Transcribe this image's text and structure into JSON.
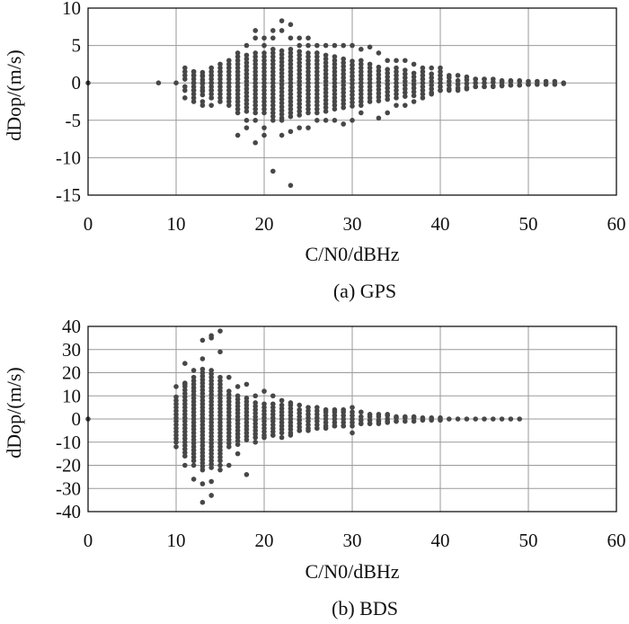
{
  "chart_data": [
    {
      "type": "scatter",
      "caption": "(a) GPS",
      "xlabel": "C/N0/dBHz",
      "ylabel": "dDop/(m/s)",
      "xlim": [
        0,
        60
      ],
      "ylim": [
        -15,
        10
      ],
      "xticks": [
        0,
        10,
        20,
        30,
        40,
        50,
        60
      ],
      "yticks": [
        -15,
        -10,
        -5,
        0,
        5,
        10
      ],
      "xtick_labels": [
        "0",
        "10",
        "20",
        "30",
        "40",
        "50",
        "60"
      ],
      "ytick_labels": [
        "-15",
        "-10",
        "-5",
        "0",
        "5",
        "10"
      ],
      "grid": true,
      "marker_color": "#474747",
      "points": [
        [
          0,
          0
        ],
        [
          8,
          0
        ],
        [
          10,
          0
        ],
        [
          11,
          0.5
        ],
        [
          11,
          -0.5
        ],
        [
          11,
          1
        ],
        [
          11,
          -1
        ],
        [
          11,
          1.5
        ],
        [
          11,
          2
        ],
        [
          11,
          -2
        ],
        [
          12,
          0
        ],
        [
          12,
          1
        ],
        [
          12,
          -1
        ],
        [
          12,
          1.5
        ],
        [
          12,
          -2
        ],
        [
          12,
          -2.5
        ],
        [
          13,
          -1
        ],
        [
          13,
          1
        ],
        [
          13,
          0
        ],
        [
          13,
          -2.5
        ],
        [
          13,
          -3
        ],
        [
          14,
          0
        ],
        [
          14,
          -1
        ],
        [
          14,
          1
        ],
        [
          14,
          -2
        ],
        [
          14,
          2
        ],
        [
          14,
          -3
        ],
        [
          15,
          1.5
        ],
        [
          16,
          2
        ],
        [
          16,
          -2
        ],
        [
          17,
          -7
        ],
        [
          17,
          -4
        ],
        [
          17,
          4
        ],
        [
          18,
          -5
        ],
        [
          18,
          5
        ],
        [
          18,
          -6
        ],
        [
          19,
          -8
        ],
        [
          19,
          -5
        ],
        [
          19,
          6
        ],
        [
          19,
          7
        ],
        [
          20,
          -7
        ],
        [
          20,
          5
        ],
        [
          20,
          6
        ],
        [
          20,
          -6
        ],
        [
          21,
          -11.8
        ],
        [
          21,
          6
        ],
        [
          21,
          7
        ],
        [
          21,
          -5
        ],
        [
          22,
          8.3
        ],
        [
          22,
          -7
        ],
        [
          22,
          7
        ],
        [
          22,
          -5
        ],
        [
          23,
          -13.7
        ],
        [
          23,
          7.8
        ],
        [
          23,
          -6.5
        ],
        [
          23,
          6
        ],
        [
          24,
          6
        ],
        [
          24,
          -6
        ],
        [
          24,
          5
        ],
        [
          25,
          -6
        ],
        [
          25,
          5
        ],
        [
          25,
          6
        ],
        [
          26,
          5
        ],
        [
          26,
          -5
        ],
        [
          26,
          4
        ],
        [
          27,
          5
        ],
        [
          27,
          -5
        ],
        [
          28,
          5
        ],
        [
          28,
          -5
        ],
        [
          29,
          5
        ],
        [
          29,
          -5.5
        ],
        [
          30,
          5
        ],
        [
          30,
          -5
        ],
        [
          31,
          4.5
        ],
        [
          31,
          -4
        ],
        [
          32,
          4.8
        ],
        [
          33,
          -4.7
        ],
        [
          33,
          4
        ],
        [
          34,
          -4
        ],
        [
          34,
          3
        ],
        [
          35,
          3
        ],
        [
          35,
          -3
        ],
        [
          36,
          3
        ],
        [
          36,
          -3
        ],
        [
          37,
          2.5
        ],
        [
          37,
          -2.5
        ],
        [
          38,
          2
        ],
        [
          38,
          -2
        ],
        [
          39,
          2
        ],
        [
          39,
          -1.5
        ],
        [
          40,
          1.5
        ],
        [
          40,
          2
        ],
        [
          40,
          -1
        ],
        [
          41,
          1
        ],
        [
          41,
          -1
        ],
        [
          42,
          1
        ],
        [
          42,
          -1
        ],
        [
          43,
          0.8
        ],
        [
          43,
          -0.8
        ],
        [
          44,
          0.5
        ],
        [
          44,
          -0.5
        ],
        [
          45,
          0.5
        ],
        [
          45,
          -0.5
        ],
        [
          46,
          0.5
        ],
        [
          46,
          -0.5
        ],
        [
          47,
          0.3
        ],
        [
          47,
          -0.3
        ],
        [
          48,
          0.3
        ],
        [
          48,
          -0.3
        ],
        [
          49,
          0.3
        ],
        [
          49,
          -0.3
        ],
        [
          50,
          0.2
        ],
        [
          50,
          -0.2
        ],
        [
          51,
          0.2
        ],
        [
          52,
          0.2
        ],
        [
          53,
          0.2
        ],
        [
          54,
          0
        ]
      ],
      "column_spread": [
        [
          12,
          1.5
        ],
        [
          13,
          1.6
        ],
        [
          14,
          2
        ],
        [
          15,
          2.5
        ],
        [
          16,
          3
        ],
        [
          17,
          3.5
        ],
        [
          18,
          3.8
        ],
        [
          19,
          4
        ],
        [
          20,
          4
        ],
        [
          21,
          4.5
        ],
        [
          22,
          4.7
        ],
        [
          23,
          4.5
        ],
        [
          24,
          4.3
        ],
        [
          25,
          4
        ],
        [
          26,
          4
        ],
        [
          27,
          3.8
        ],
        [
          28,
          3.5
        ],
        [
          29,
          3.3
        ],
        [
          30,
          3.1
        ],
        [
          31,
          3
        ],
        [
          32,
          2.5
        ],
        [
          33,
          2.4
        ],
        [
          34,
          2.2
        ],
        [
          35,
          2
        ],
        [
          36,
          1.8
        ],
        [
          37,
          1.7
        ],
        [
          38,
          1.5
        ],
        [
          39,
          1.3
        ],
        [
          40,
          1
        ],
        [
          41,
          0.8
        ],
        [
          42,
          0.7
        ],
        [
          43,
          0.6
        ],
        [
          44,
          0.5
        ],
        [
          45,
          0.5
        ],
        [
          46,
          0.4
        ],
        [
          47,
          0.4
        ],
        [
          48,
          0.3
        ],
        [
          49,
          0.3
        ],
        [
          50,
          0.2
        ],
        [
          51,
          0.2
        ],
        [
          52,
          0.2
        ],
        [
          53,
          0.2
        ],
        [
          54,
          0.1
        ]
      ],
      "sample_step": 0.5
    },
    {
      "type": "scatter",
      "caption": "(b) BDS",
      "xlabel": "C/N0/dBHz",
      "ylabel": "dDop/(m/s)",
      "xlim": [
        0,
        60
      ],
      "ylim": [
        -40,
        40
      ],
      "xticks": [
        0,
        10,
        20,
        30,
        40,
        50,
        60
      ],
      "yticks": [
        -40,
        -30,
        -20,
        -10,
        0,
        10,
        20,
        30,
        40
      ],
      "xtick_labels": [
        "0",
        "10",
        "20",
        "30",
        "40",
        "50",
        "60"
      ],
      "ytick_labels": [
        "-40",
        "-30",
        "-20",
        "-10",
        "0",
        "10",
        "20",
        "30",
        "40"
      ],
      "grid": true,
      "marker_color": "#474747",
      "points": [
        [
          0,
          0
        ],
        [
          10,
          14
        ],
        [
          10,
          -12
        ],
        [
          11,
          15
        ],
        [
          11,
          -20
        ],
        [
          11,
          24
        ],
        [
          12,
          -26
        ],
        [
          12,
          21
        ],
        [
          12,
          -20
        ],
        [
          13,
          -36
        ],
        [
          13,
          34
        ],
        [
          13,
          -28
        ],
        [
          13,
          26
        ],
        [
          14,
          36
        ],
        [
          14,
          -33
        ],
        [
          14,
          -27
        ],
        [
          14,
          35
        ],
        [
          15,
          38
        ],
        [
          15,
          29
        ],
        [
          15,
          -22
        ],
        [
          15,
          -20
        ],
        [
          16,
          -20
        ],
        [
          16,
          18
        ],
        [
          17,
          -15
        ],
        [
          17,
          14
        ],
        [
          18,
          -24
        ],
        [
          18,
          15
        ],
        [
          19,
          10
        ],
        [
          19,
          -10
        ],
        [
          20,
          12
        ],
        [
          20,
          -8
        ],
        [
          21,
          10
        ],
        [
          21,
          -7
        ],
        [
          22,
          8
        ],
        [
          22,
          -8
        ],
        [
          23,
          7
        ],
        [
          23,
          -7
        ],
        [
          24,
          6
        ],
        [
          24,
          -5
        ],
        [
          25,
          5
        ],
        [
          25,
          -5
        ],
        [
          26,
          5
        ],
        [
          26,
          -4
        ],
        [
          27,
          4
        ],
        [
          27,
          -4
        ],
        [
          28,
          4
        ],
        [
          28,
          -3
        ],
        [
          29,
          4
        ],
        [
          29,
          -3
        ],
        [
          30,
          5
        ],
        [
          30,
          -6
        ],
        [
          31,
          3
        ],
        [
          31,
          -2
        ],
        [
          32,
          2
        ],
        [
          32,
          -2
        ],
        [
          33,
          2
        ],
        [
          33,
          -1
        ],
        [
          34,
          2
        ],
        [
          34,
          -1
        ],
        [
          35,
          1
        ],
        [
          35,
          -1
        ],
        [
          36,
          1
        ],
        [
          37,
          1
        ],
        [
          38,
          0.5
        ],
        [
          39,
          0.5
        ],
        [
          40,
          0.5
        ],
        [
          41,
          0
        ],
        [
          42,
          0
        ],
        [
          43,
          0
        ],
        [
          44,
          0
        ],
        [
          45,
          0
        ],
        [
          46,
          0
        ],
        [
          47,
          0
        ],
        [
          48,
          0
        ],
        [
          49,
          0
        ]
      ],
      "column_spread": [
        [
          10,
          10
        ],
        [
          11,
          16
        ],
        [
          12,
          18
        ],
        [
          13,
          22
        ],
        [
          14,
          21
        ],
        [
          15,
          18
        ],
        [
          16,
          12
        ],
        [
          17,
          11
        ],
        [
          18,
          9
        ],
        [
          19,
          8
        ],
        [
          20,
          7
        ],
        [
          21,
          7
        ],
        [
          22,
          6
        ],
        [
          23,
          6
        ],
        [
          24,
          5
        ],
        [
          25,
          4
        ],
        [
          26,
          4
        ],
        [
          27,
          3
        ],
        [
          28,
          3
        ],
        [
          29,
          3
        ],
        [
          30,
          3
        ],
        [
          31,
          2
        ],
        [
          32,
          2
        ],
        [
          33,
          2
        ],
        [
          34,
          1.5
        ],
        [
          35,
          1
        ],
        [
          36,
          1
        ],
        [
          37,
          1
        ],
        [
          38,
          0.5
        ],
        [
          39,
          0.5
        ],
        [
          40,
          0.5
        ]
      ],
      "sample_step": 1.5
    }
  ]
}
